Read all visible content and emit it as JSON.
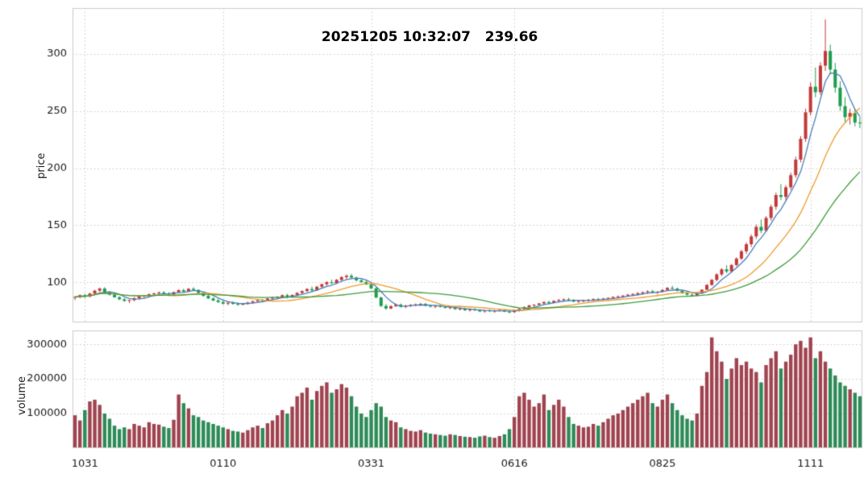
{
  "chart_data": {
    "type": "candlestick",
    "title": "20251205 10:32:07   239.66",
    "price_axis": {
      "label": "price",
      "ticks": [
        100,
        150,
        200,
        250,
        300
      ],
      "range": [
        65,
        340
      ]
    },
    "volume_axis": {
      "label": "volume",
      "ticks": [
        100000,
        200000,
        300000
      ],
      "range": [
        0,
        340000
      ]
    },
    "x_axis": {
      "tick_labels": [
        "1031",
        "0110",
        "0331",
        "0616",
        "0825",
        "1111"
      ],
      "tick_indices": [
        2,
        30,
        60,
        89,
        119,
        149
      ]
    },
    "moving_averages": [
      {
        "name": "ma-fast",
        "period": 5,
        "color": "#4a7ebb"
      },
      {
        "name": "ma-mid",
        "period": 15,
        "color": "#ef9b2d"
      },
      {
        "name": "ma-slow",
        "period": 30,
        "color": "#3f9d3f"
      }
    ],
    "colors": {
      "up": "#c33a3a",
      "down": "#1f9d4f",
      "vol_up": "#a04450",
      "vol_down": "#2e8b57",
      "grid": "#c9c9c9",
      "border": "#cccccc",
      "text": "#1a1a1a"
    },
    "candles": [
      [
        86.5,
        88.0,
        84.5,
        87.2,
        95000
      ],
      [
        87.2,
        89.5,
        86.0,
        88.8,
        80000
      ],
      [
        88.8,
        90.0,
        86.5,
        87.5,
        110000
      ],
      [
        87.5,
        91.0,
        87.0,
        90.2,
        135000
      ],
      [
        90.2,
        93.5,
        89.5,
        92.8,
        140000
      ],
      [
        92.8,
        95.5,
        91.5,
        94.6,
        125000
      ],
      [
        94.6,
        95.8,
        91.0,
        91.8,
        100000
      ],
      [
        91.8,
        92.5,
        88.5,
        89.2,
        85000
      ],
      [
        89.2,
        90.5,
        86.5,
        87.0,
        65000
      ],
      [
        87.0,
        88.0,
        84.5,
        85.2,
        55000
      ],
      [
        85.2,
        86.5,
        83.0,
        83.8,
        60000
      ],
      [
        83.8,
        85.0,
        82.0,
        84.5,
        55000
      ],
      [
        84.5,
        87.0,
        83.5,
        86.2,
        70000
      ],
      [
        86.2,
        88.5,
        85.0,
        87.8,
        65000
      ],
      [
        87.8,
        89.0,
        86.0,
        88.4,
        60000
      ],
      [
        88.4,
        90.5,
        87.5,
        89.6,
        75000
      ],
      [
        89.6,
        91.0,
        88.0,
        90.4,
        70000
      ],
      [
        90.4,
        92.0,
        89.0,
        91.2,
        68000
      ],
      [
        91.2,
        92.5,
        89.5,
        90.0,
        62000
      ],
      [
        90.0,
        91.5,
        88.5,
        89.4,
        58000
      ],
      [
        89.4,
        92.0,
        89.0,
        91.5,
        82000
      ],
      [
        91.5,
        94.0,
        90.5,
        93.2,
        155000
      ],
      [
        93.2,
        94.5,
        91.0,
        92.0,
        130000
      ],
      [
        92.0,
        95.0,
        91.5,
        94.4,
        115000
      ],
      [
        94.4,
        95.8,
        92.5,
        93.4,
        95000
      ],
      [
        93.4,
        94.0,
        90.0,
        90.8,
        90000
      ],
      [
        90.8,
        91.5,
        87.5,
        88.2,
        80000
      ],
      [
        88.2,
        89.0,
        85.5,
        86.0,
        75000
      ],
      [
        86.0,
        87.0,
        83.5,
        84.2,
        70000
      ],
      [
        84.2,
        85.5,
        82.0,
        82.8,
        65000
      ],
      [
        82.8,
        84.0,
        80.5,
        81.4,
        60000
      ],
      [
        81.4,
        83.0,
        80.0,
        82.2,
        55000
      ],
      [
        82.2,
        83.5,
        80.5,
        81.2,
        50000
      ],
      [
        81.2,
        82.5,
        79.5,
        80.6,
        48000
      ],
      [
        80.6,
        82.0,
        79.8,
        81.5,
        45000
      ],
      [
        81.5,
        83.0,
        80.5,
        82.4,
        52000
      ],
      [
        82.4,
        84.0,
        81.5,
        83.5,
        60000
      ],
      [
        83.5,
        85.0,
        82.5,
        84.4,
        65000
      ],
      [
        84.4,
        85.5,
        83.0,
        84.0,
        58000
      ],
      [
        84.0,
        86.5,
        83.5,
        85.8,
        72000
      ],
      [
        85.8,
        87.5,
        84.5,
        86.6,
        80000
      ],
      [
        86.6,
        88.0,
        85.0,
        87.4,
        95000
      ],
      [
        87.4,
        89.5,
        86.5,
        88.8,
        110000
      ],
      [
        88.8,
        90.0,
        86.0,
        87.0,
        100000
      ],
      [
        87.0,
        89.5,
        86.5,
        89.0,
        120000
      ],
      [
        89.0,
        91.5,
        88.0,
        90.8,
        150000
      ],
      [
        90.8,
        93.0,
        89.5,
        92.4,
        160000
      ],
      [
        92.4,
        95.0,
        91.5,
        94.2,
        175000
      ],
      [
        94.2,
        96.5,
        92.0,
        93.0,
        140000
      ],
      [
        93.0,
        97.0,
        92.5,
        96.2,
        165000
      ],
      [
        96.2,
        99.0,
        95.0,
        98.4,
        180000
      ],
      [
        98.4,
        101.0,
        97.0,
        100.2,
        190000
      ],
      [
        100.2,
        102.5,
        98.5,
        99.4,
        160000
      ],
      [
        99.4,
        103.0,
        98.5,
        102.2,
        170000
      ],
      [
        102.2,
        105.5,
        101.0,
        104.6,
        185000
      ],
      [
        104.6,
        107.0,
        103.0,
        105.8,
        175000
      ],
      [
        105.8,
        107.5,
        103.5,
        104.2,
        150000
      ],
      [
        104.2,
        105.0,
        101.0,
        101.8,
        120000
      ],
      [
        101.8,
        103.0,
        99.5,
        100.4,
        100000
      ],
      [
        100.4,
        101.5,
        97.5,
        98.2,
        90000
      ],
      [
        98.2,
        99.0,
        94.0,
        94.8,
        110000
      ],
      [
        94.8,
        95.5,
        86.0,
        86.8,
        130000
      ],
      [
        86.8,
        87.5,
        78.5,
        79.4,
        120000
      ],
      [
        79.4,
        81.0,
        76.0,
        77.2,
        90000
      ],
      [
        77.2,
        80.0,
        76.5,
        79.2,
        80000
      ],
      [
        79.2,
        81.5,
        78.5,
        80.6,
        75000
      ],
      [
        80.6,
        81.5,
        78.0,
        78.8,
        60000
      ],
      [
        78.8,
        80.5,
        77.5,
        79.8,
        55000
      ],
      [
        79.8,
        81.0,
        78.5,
        80.2,
        50000
      ],
      [
        80.2,
        81.5,
        79.0,
        80.8,
        48000
      ],
      [
        80.8,
        82.0,
        79.5,
        81.2,
        52000
      ],
      [
        81.2,
        82.0,
        79.0,
        79.6,
        45000
      ],
      [
        79.6,
        80.5,
        78.0,
        78.8,
        42000
      ],
      [
        78.8,
        80.0,
        77.5,
        79.4,
        40000
      ],
      [
        79.4,
        80.5,
        78.0,
        78.6,
        38000
      ],
      [
        78.6,
        79.5,
        77.0,
        77.8,
        36000
      ],
      [
        77.8,
        79.0,
        76.5,
        78.2,
        40000
      ],
      [
        78.2,
        79.0,
        76.0,
        76.6,
        38000
      ],
      [
        76.6,
        78.0,
        75.5,
        77.0,
        35000
      ],
      [
        77.0,
        78.0,
        75.0,
        75.6,
        33000
      ],
      [
        75.6,
        77.0,
        74.5,
        76.2,
        32000
      ],
      [
        76.2,
        77.5,
        75.0,
        75.8,
        30000
      ],
      [
        75.8,
        76.5,
        74.0,
        74.6,
        34000
      ],
      [
        74.6,
        76.0,
        73.5,
        75.4,
        36000
      ],
      [
        75.4,
        76.5,
        74.0,
        74.8,
        32000
      ],
      [
        74.8,
        76.0,
        73.5,
        75.2,
        30000
      ],
      [
        75.2,
        76.5,
        74.5,
        75.8,
        35000
      ],
      [
        75.8,
        76.5,
        74.0,
        74.4,
        40000
      ],
      [
        74.4,
        75.5,
        73.0,
        74.0,
        55000
      ],
      [
        74.0,
        76.0,
        73.5,
        75.4,
        90000
      ],
      [
        75.4,
        77.5,
        74.5,
        76.8,
        150000
      ],
      [
        76.8,
        79.0,
        76.0,
        78.4,
        160000
      ],
      [
        78.4,
        80.5,
        77.5,
        79.8,
        140000
      ],
      [
        79.8,
        81.0,
        78.0,
        80.4,
        120000
      ],
      [
        80.4,
        82.0,
        79.5,
        81.6,
        130000
      ],
      [
        81.6,
        83.5,
        80.5,
        82.8,
        155000
      ],
      [
        82.8,
        84.0,
        81.0,
        82.0,
        110000
      ],
      [
        82.0,
        84.5,
        81.5,
        83.8,
        125000
      ],
      [
        83.8,
        85.5,
        82.5,
        84.6,
        140000
      ],
      [
        84.6,
        86.0,
        83.0,
        85.2,
        120000
      ],
      [
        85.2,
        86.5,
        83.5,
        84.4,
        90000
      ],
      [
        84.4,
        85.5,
        82.5,
        83.2,
        70000
      ],
      [
        83.2,
        84.5,
        82.0,
        83.8,
        65000
      ],
      [
        83.8,
        85.0,
        82.5,
        84.2,
        60000
      ],
      [
        84.2,
        85.5,
        83.0,
        84.8,
        62000
      ],
      [
        84.8,
        86.0,
        83.5,
        85.4,
        70000
      ],
      [
        85.4,
        86.5,
        84.0,
        85.0,
        65000
      ],
      [
        85.0,
        86.5,
        84.0,
        85.8,
        75000
      ],
      [
        85.8,
        87.0,
        84.5,
        86.4,
        85000
      ],
      [
        86.4,
        88.0,
        85.5,
        87.2,
        95000
      ],
      [
        87.2,
        88.5,
        86.0,
        87.8,
        100000
      ],
      [
        87.8,
        89.0,
        86.5,
        88.4,
        110000
      ],
      [
        88.4,
        90.0,
        87.5,
        89.2,
        120000
      ],
      [
        89.2,
        90.5,
        88.0,
        89.8,
        130000
      ],
      [
        89.8,
        91.5,
        88.5,
        90.6,
        140000
      ],
      [
        90.6,
        92.0,
        89.0,
        91.4,
        150000
      ],
      [
        91.4,
        93.0,
        90.0,
        92.2,
        160000
      ],
      [
        92.2,
        93.5,
        90.5,
        91.0,
        130000
      ],
      [
        91.0,
        92.5,
        89.5,
        91.8,
        120000
      ],
      [
        91.8,
        94.0,
        91.0,
        93.4,
        140000
      ],
      [
        93.4,
        96.0,
        92.5,
        95.2,
        155000
      ],
      [
        95.2,
        97.0,
        94.0,
        94.6,
        130000
      ],
      [
        94.6,
        95.5,
        92.0,
        92.8,
        110000
      ],
      [
        92.8,
        93.5,
        90.0,
        90.6,
        95000
      ],
      [
        90.6,
        92.0,
        88.5,
        89.2,
        85000
      ],
      [
        89.2,
        90.5,
        87.5,
        88.4,
        80000
      ],
      [
        88.4,
        91.0,
        88.0,
        90.4,
        100000
      ],
      [
        90.4,
        94.0,
        90.0,
        93.6,
        180000
      ],
      [
        93.6,
        98.5,
        93.0,
        97.8,
        220000
      ],
      [
        97.8,
        103.0,
        97.0,
        102.2,
        320000
      ],
      [
        102.2,
        108.0,
        101.0,
        107.0,
        280000
      ],
      [
        107.0,
        112.5,
        105.5,
        111.4,
        250000
      ],
      [
        111.4,
        115.0,
        108.0,
        109.6,
        200000
      ],
      [
        109.6,
        116.0,
        108.5,
        115.2,
        230000
      ],
      [
        115.2,
        122.0,
        114.0,
        120.8,
        260000
      ],
      [
        120.8,
        128.5,
        119.5,
        127.2,
        240000
      ],
      [
        127.2,
        135.0,
        125.0,
        133.4,
        250000
      ],
      [
        133.4,
        142.0,
        131.0,
        140.2,
        230000
      ],
      [
        140.2,
        150.5,
        138.0,
        148.6,
        220000
      ],
      [
        148.6,
        155.0,
        143.0,
        145.2,
        190000
      ],
      [
        145.2,
        158.0,
        144.0,
        156.4,
        240000
      ],
      [
        156.4,
        168.0,
        154.0,
        166.2,
        260000
      ],
      [
        166.2,
        178.5,
        163.5,
        176.4,
        280000
      ],
      [
        176.4,
        186.0,
        172.0,
        174.8,
        230000
      ],
      [
        174.8,
        185.0,
        171.5,
        183.2,
        250000
      ],
      [
        183.2,
        196.0,
        181.0,
        193.8,
        270000
      ],
      [
        193.8,
        210.0,
        191.5,
        207.4,
        300000
      ],
      [
        207.4,
        228.0,
        205.0,
        225.6,
        310000
      ],
      [
        225.6,
        252.0,
        223.0,
        248.8,
        290000
      ],
      [
        248.8,
        275.0,
        246.0,
        271.2,
        320000
      ],
      [
        271.2,
        288.0,
        262.0,
        266.4,
        260000
      ],
      [
        266.4,
        292.5,
        264.0,
        289.6,
        280000
      ],
      [
        289.6,
        330.0,
        285.0,
        302.4,
        250000
      ],
      [
        302.4,
        308.0,
        282.0,
        286.2,
        230000
      ],
      [
        286.2,
        292.0,
        266.0,
        270.4,
        210000
      ],
      [
        270.4,
        276.0,
        250.0,
        254.2,
        190000
      ],
      [
        254.2,
        262.0,
        240.0,
        244.6,
        180000
      ],
      [
        244.6,
        252.0,
        238.0,
        248.2,
        170000
      ],
      [
        248.2,
        251.0,
        236.5,
        239.8,
        160000
      ],
      [
        239.8,
        245.0,
        235.0,
        239.66,
        150000
      ]
    ]
  }
}
